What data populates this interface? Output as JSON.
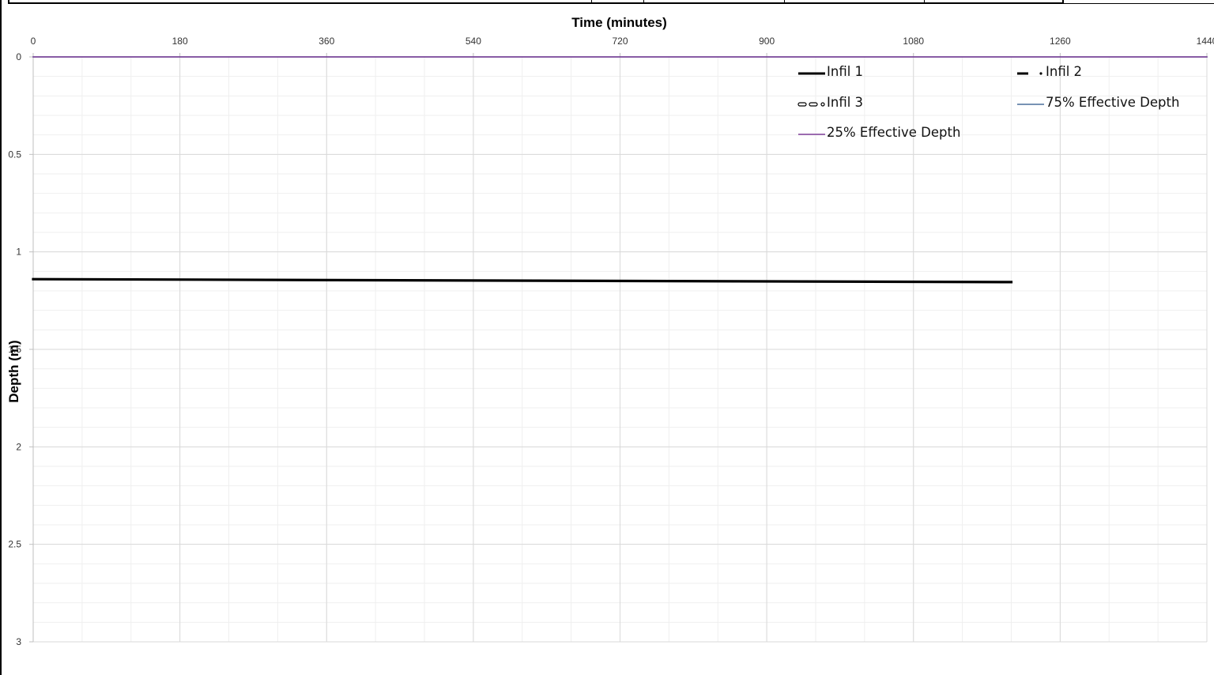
{
  "chart_data": {
    "type": "line",
    "title": "",
    "xlabel": "Time (minutes)",
    "ylabel": "Depth (m)",
    "xlim": [
      0,
      1440
    ],
    "ylim": [
      0,
      3
    ],
    "y_inverted": true,
    "x_axis_position": "top",
    "x_ticks": [
      0,
      180,
      360,
      540,
      720,
      900,
      1080,
      1260,
      1440
    ],
    "x_tick_labels": [
      "0",
      "180",
      "360",
      "540",
      "720",
      "900",
      "1080",
      "1260",
      "1440"
    ],
    "y_ticks": [
      0,
      0.5,
      1,
      1.5,
      2,
      2.5,
      3
    ],
    "y_tick_labels": [
      "0",
      "0.5",
      "1",
      "1.5",
      "2",
      "2.5",
      "3"
    ],
    "grid": true,
    "legend_position": "top-right",
    "series": [
      {
        "name": "Infil 1",
        "color": "#000000",
        "style": "solid-thick",
        "x": [
          0,
          1200
        ],
        "y": [
          1.14,
          1.155
        ]
      },
      {
        "name": "Infil 2",
        "color": "#000000",
        "style": "dash-dot",
        "x": [],
        "y": []
      },
      {
        "name": "Infil 3",
        "color": "#000000",
        "style": "hollow-dash",
        "x": [],
        "y": []
      },
      {
        "name": "75% Effective Depth",
        "color": "#4a6e9c",
        "style": "thin",
        "x": [
          0,
          1440
        ],
        "y": [
          0,
          0
        ]
      },
      {
        "name": "25% Effective Depth",
        "color": "#7e3f98",
        "style": "thin",
        "x": [
          0,
          1440
        ],
        "y": [
          0,
          0
        ]
      }
    ]
  }
}
